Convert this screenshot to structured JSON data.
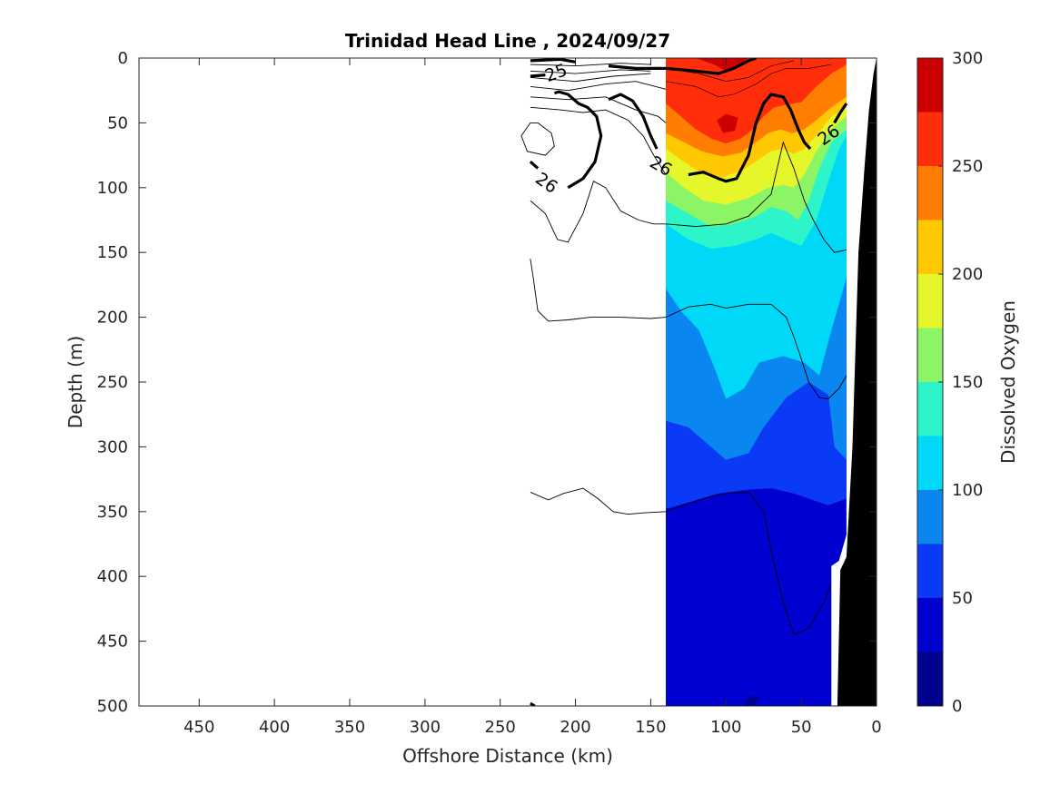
{
  "chart_data": {
    "type": "contour",
    "title": "Trinidad Head Line , 2024/09/27",
    "xlabel": "Offshore Distance (km)",
    "ylabel": "Depth (m)",
    "xlim": [
      490,
      0
    ],
    "ylim": [
      0,
      500
    ],
    "x_reversed": true,
    "y_reversed": true,
    "x_ticks": [
      450,
      400,
      350,
      300,
      250,
      200,
      150,
      100,
      50,
      0
    ],
    "y_ticks": [
      0,
      50,
      100,
      150,
      200,
      250,
      300,
      350,
      400,
      450,
      500
    ],
    "colorbar": {
      "label": "Dissolved Oxygen",
      "range": [
        0,
        300
      ],
      "ticks": [
        0,
        50,
        100,
        150,
        200,
        250,
        300
      ],
      "levels": [
        0,
        25,
        50,
        75,
        100,
        125,
        150,
        175,
        200,
        225,
        250,
        275,
        300
      ],
      "colors": [
        "#00008f",
        "#0000d0",
        "#0a3af5",
        "#0a86f0",
        "#00d8f8",
        "#2ef5c9",
        "#8cf566",
        "#e5f72b",
        "#ffc800",
        "#ff7d00",
        "#ff2d0a",
        "#cc0000"
      ]
    },
    "filled_field": {
      "x_range": [
        140,
        20
      ],
      "description_levels_by_depth_m": [
        {
          "depth": 0,
          "value_range": [
            225,
            300
          ]
        },
        {
          "depth": 100,
          "value_range": [
            175,
            225
          ]
        },
        {
          "depth": 150,
          "value_range": [
            125,
            150
          ]
        },
        {
          "depth": 200,
          "value_range": [
            100,
            125
          ]
        },
        {
          "depth": 300,
          "value_range": [
            50,
            75
          ]
        },
        {
          "depth": 400,
          "value_range": [
            25,
            50
          ]
        }
      ]
    },
    "density_contours": {
      "labels": [
        {
          "text": "25",
          "x": 213,
          "y": 11
        },
        {
          "text": "26",
          "x": 219,
          "y": 96
        },
        {
          "text": "26",
          "x": 143,
          "y": 83
        },
        {
          "text": "26",
          "x": 32,
          "y": 59
        }
      ]
    }
  }
}
